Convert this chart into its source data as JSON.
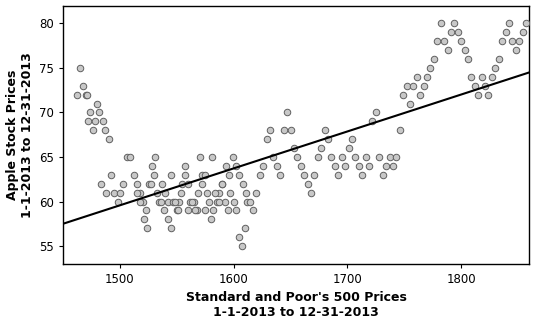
{
  "xlabel": "Standard and Poor's 500 Prices\n1-1-2013 to 12-31-2013",
  "ylabel": "Apple Stock Prices\n1-1-2013 to 12-31-2013",
  "xlim": [
    1450,
    1860
  ],
  "ylim": [
    53,
    82
  ],
  "xticks": [
    1500,
    1600,
    1700,
    1800
  ],
  "yticks": [
    55,
    60,
    65,
    70,
    75,
    80
  ],
  "scatter_facecolor": "#c8c8c8",
  "scatter_edgecolor": "#606060",
  "scatter_size": 22,
  "line_color": "black",
  "line_x": [
    1450,
    1860
  ],
  "line_y": [
    57.5,
    74.5
  ],
  "background_color": "#ffffff",
  "sp500": [
    1462,
    1465,
    1470,
    1472,
    1476,
    1480,
    1482,
    1485,
    1487,
    1490,
    1468,
    1471,
    1474,
    1478,
    1483,
    1488,
    1492,
    1495,
    1498,
    1500,
    1503,
    1506,
    1509,
    1512,
    1515,
    1518,
    1520,
    1523,
    1526,
    1528,
    1531,
    1534,
    1537,
    1540,
    1542,
    1545,
    1547,
    1550,
    1552,
    1555,
    1557,
    1560,
    1562,
    1565,
    1568,
    1570,
    1572,
    1575,
    1577,
    1580,
    1582,
    1585,
    1587,
    1590,
    1592,
    1595,
    1597,
    1600,
    1602,
    1605,
    1607,
    1610,
    1612,
    1515,
    1518,
    1521,
    1524,
    1527,
    1530,
    1533,
    1536,
    1539,
    1542,
    1545,
    1548,
    1551,
    1554,
    1557,
    1560,
    1563,
    1566,
    1569,
    1572,
    1575,
    1578,
    1581,
    1584,
    1587,
    1590,
    1593,
    1596,
    1599,
    1602,
    1605,
    1608,
    1611,
    1614,
    1617,
    1620,
    1623,
    1626,
    1629,
    1632,
    1635,
    1638,
    1641,
    1644,
    1647,
    1650,
    1653,
    1656,
    1659,
    1662,
    1665,
    1668,
    1671,
    1674,
    1677,
    1680,
    1683,
    1686,
    1689,
    1692,
    1695,
    1698,
    1701,
    1704,
    1707,
    1710,
    1713,
    1716,
    1719,
    1722,
    1725,
    1728,
    1731,
    1734,
    1737,
    1740,
    1743,
    1746,
    1749,
    1752,
    1755,
    1758,
    1761,
    1764,
    1767,
    1770,
    1773,
    1776,
    1779,
    1782,
    1785,
    1788,
    1791,
    1794,
    1797,
    1800,
    1803,
    1806,
    1809,
    1812,
    1815,
    1818,
    1821,
    1824,
    1827,
    1830,
    1833,
    1836,
    1839,
    1842,
    1845,
    1848,
    1851,
    1854,
    1857
  ],
  "aapl": [
    72,
    75,
    72,
    69,
    68,
    71,
    70,
    69,
    68,
    67,
    73,
    72,
    70,
    69,
    62,
    61,
    63,
    61,
    60,
    61,
    62,
    65,
    65,
    63,
    62,
    61,
    60,
    59,
    62,
    64,
    65,
    60,
    62,
    61,
    60,
    63,
    60,
    59,
    60,
    62,
    64,
    59,
    60,
    60,
    59,
    65,
    63,
    59,
    61,
    58,
    59,
    60,
    61,
    62,
    60,
    59,
    61,
    60,
    59,
    56,
    55,
    57,
    60,
    61,
    60,
    58,
    57,
    62,
    63,
    61,
    60,
    59,
    58,
    57,
    60,
    59,
    61,
    63,
    62,
    60,
    59,
    61,
    62,
    63,
    60,
    65,
    61,
    60,
    62,
    64,
    63,
    65,
    64,
    63,
    62,
    61,
    60,
    59,
    61,
    63,
    64,
    67,
    68,
    65,
    64,
    63,
    68,
    70,
    68,
    66,
    65,
    64,
    63,
    62,
    61,
    63,
    65,
    66,
    68,
    67,
    65,
    64,
    63,
    65,
    64,
    66,
    67,
    65,
    64,
    63,
    65,
    64,
    69,
    70,
    65,
    63,
    64,
    65,
    64,
    65,
    68,
    72,
    73,
    71,
    73,
    74,
    72,
    73,
    74,
    75,
    76,
    78,
    80,
    78,
    77,
    79,
    80,
    79,
    78,
    77,
    76,
    74,
    73,
    72,
    74,
    73,
    72,
    74,
    75,
    76,
    78,
    79,
    80,
    78,
    77,
    78,
    79,
    80
  ]
}
